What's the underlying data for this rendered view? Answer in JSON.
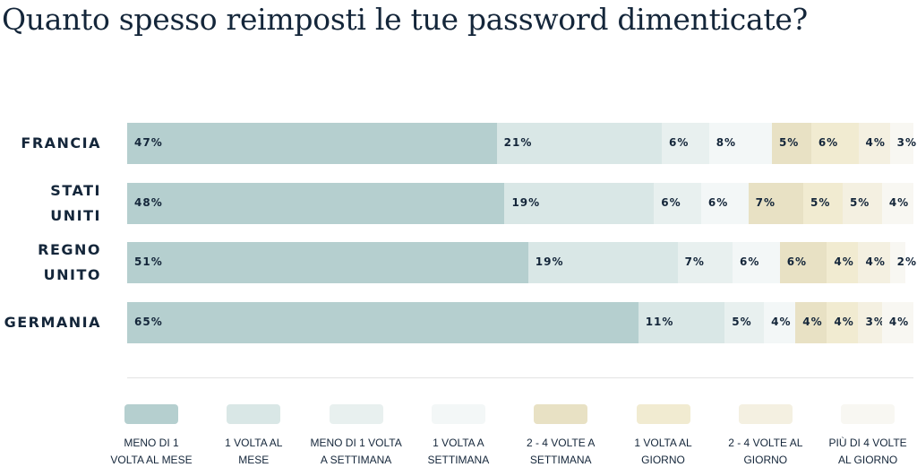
{
  "title": "Quanto spesso reimposti le tue password dimenticate?",
  "chart_data": {
    "type": "bar",
    "stacked": true,
    "orientation": "horizontal",
    "title": "Quanto spesso reimposti le tue password dimenticate?",
    "categories": [
      "FRANCIA",
      "STATI UNITI",
      "REGNO UNITO",
      "GERMANIA"
    ],
    "category_lines": [
      [
        "FRANCIA"
      ],
      [
        "STATI",
        "UNITI"
      ],
      [
        "REGNO",
        "UNITO"
      ],
      [
        "GERMANIA"
      ]
    ],
    "legend_placement": "bottom",
    "grid": false,
    "series": [
      {
        "name": "MENO DI 1 VOLTA AL MESE",
        "color": "#b5cfcf",
        "values": [
          47,
          48,
          51,
          65
        ]
      },
      {
        "name": "1 VOLTA AL MESE",
        "color": "#d9e7e6",
        "values": [
          21,
          19,
          19,
          11
        ]
      },
      {
        "name": "MENO DI 1 VOLTA A SETTIMANA",
        "color": "#e8f0ef",
        "values": [
          6,
          6,
          7,
          5
        ]
      },
      {
        "name": "1 VOLTA A SETTIMANA",
        "color": "#f3f7f7",
        "values": [
          8,
          6,
          6,
          4
        ]
      },
      {
        "name": "2 - 4 VOLTE A SETTIMANA",
        "color": "#e8e1c4",
        "values": [
          5,
          7,
          6,
          4
        ]
      },
      {
        "name": "1 VOLTA AL GIORNO",
        "color": "#f1ebd1",
        "values": [
          6,
          5,
          4,
          4
        ]
      },
      {
        "name": "2 - 4 VOLTE AL GIORNO",
        "color": "#f4f0e1",
        "values": [
          4,
          5,
          4,
          3
        ]
      },
      {
        "name": "PIÙ DI 4 VOLTE AL GIORNO",
        "color": "#f8f7f2",
        "values": [
          3,
          4,
          2,
          4
        ]
      }
    ],
    "legend_lines": [
      [
        "MENO DI 1",
        "VOLTA AL MESE"
      ],
      [
        "1 VOLTA AL",
        "MESE"
      ],
      [
        "MENO DI 1 VOLTA",
        "A SETTIMANA"
      ],
      [
        "1 VOLTA A",
        "SETTIMANA"
      ],
      [
        "2 - 4 VOLTE A",
        "SETTIMANA"
      ],
      [
        "1 VOLTA AL",
        "GIORNO"
      ],
      [
        "2 - 4 VOLTE AL",
        "GIORNO"
      ],
      [
        "PIÙ DI 4 VOLTE",
        "AL GIORNO"
      ]
    ],
    "value_suffix": "%"
  }
}
